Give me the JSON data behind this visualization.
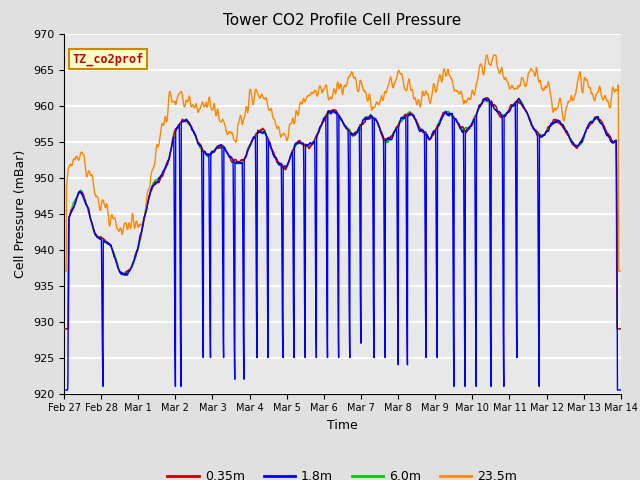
{
  "title": "Tower CO2 Profile Cell Pressure",
  "xlabel": "Time",
  "ylabel": "Cell Pressure (mBar)",
  "ylim": [
    920,
    970
  ],
  "yticks": [
    920,
    925,
    930,
    935,
    940,
    945,
    950,
    955,
    960,
    965,
    970
  ],
  "annotation_text": "TZ_co2prof",
  "annotation_box_color": "#ffffcc",
  "annotation_box_edge": "#cc8800",
  "annotation_text_color": "#cc0000",
  "series_colors": [
    "#cc0000",
    "#0000ff",
    "#00cc00",
    "#ff8800"
  ],
  "series_labels": [
    "0.35m",
    "1.8m",
    "6.0m",
    "23.5m"
  ],
  "series_linewidths": [
    1.0,
    1.0,
    1.0,
    1.0
  ],
  "bg_color": "#e0e0e0",
  "plot_bg_color": "#e8e8e8",
  "grid_color": "#ffffff",
  "x_tick_labels": [
    "Feb 27",
    "Feb 28",
    "Mar 1",
    "Mar 2",
    "Mar 3",
    "Mar 4",
    "Mar 5",
    "Mar 6",
    "Mar 7",
    "Mar 8",
    "Mar 9",
    "Mar 10",
    "Mar 11",
    "Mar 12",
    "Mar 13",
    "Mar 14"
  ],
  "n_points": 2000
}
